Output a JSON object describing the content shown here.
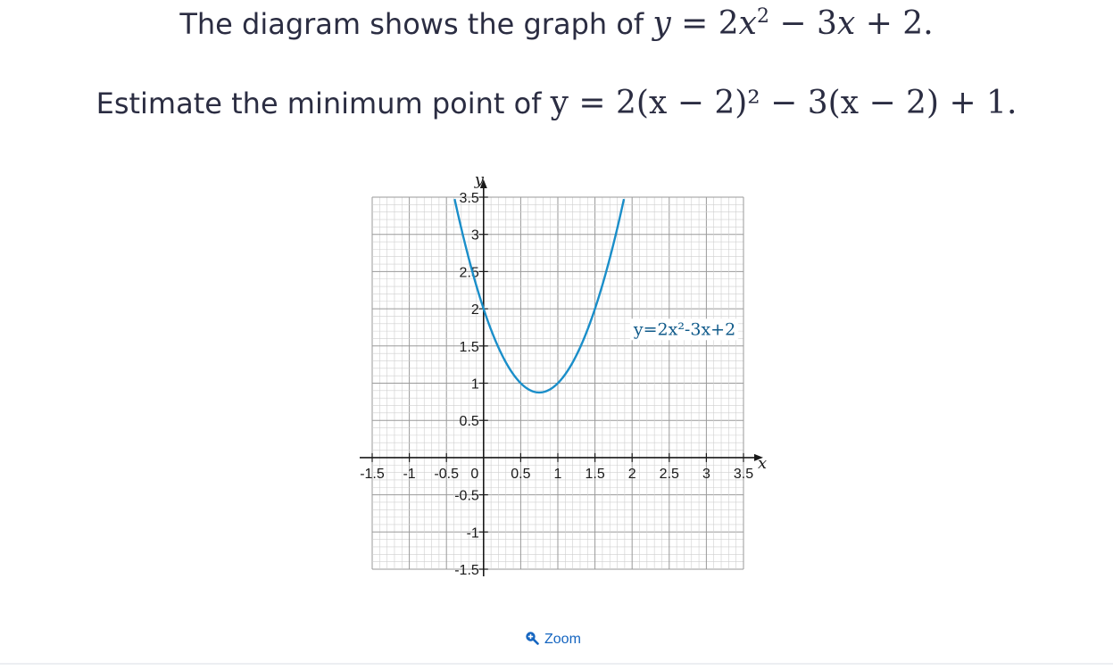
{
  "question": {
    "line1_prefix": "The diagram shows the graph of ",
    "line1_equation": {
      "lhs": "y",
      "eq": " = 2",
      "x_term": "x",
      "exp": "2",
      "rest": " − 3",
      "x2": "x",
      "tail": " + 2."
    },
    "line2_prefix": "Estimate the minimum point of ",
    "line2_equation": "y = 2(x − 2)² − 3(x − 2) + 1."
  },
  "zoom": {
    "label": "Zoom",
    "icon": "zoom-in-icon"
  },
  "colors": {
    "curve": "#1a8ec9",
    "grid_minor": "#cfcfcf",
    "grid_major": "#9a9a9a",
    "axis": "#1a1a1a",
    "link": "#1565c0",
    "text": "#2b2d42"
  },
  "chart_data": {
    "type": "line",
    "title": "",
    "xlabel": "x",
    "ylabel": "y",
    "xlim": [
      -1.5,
      3.5
    ],
    "ylim": [
      -1.5,
      3.5
    ],
    "grid": true,
    "x_ticks": [
      "-1.5",
      "-1",
      "-0.5",
      "0",
      "0.5",
      "1",
      "1.5",
      "2",
      "2.5",
      "3",
      "3.5"
    ],
    "y_ticks": [
      "3.5",
      "3",
      "2.5",
      "2",
      "1.5",
      "1",
      "0.5",
      "-0.5",
      "-1",
      "-1.5"
    ],
    "origin_label": "0",
    "series": [
      {
        "name": "y=2x²-3x+2",
        "function": "2x^2-3x+2",
        "x": [
          -0.39,
          -0.25,
          0,
          0.25,
          0.5,
          0.75,
          1,
          1.25,
          1.5,
          1.75,
          1.89
        ],
        "y": [
          3.47,
          2.88,
          2.0,
          1.38,
          1.0,
          0.88,
          1.0,
          1.38,
          2.0,
          2.88,
          3.47
        ]
      }
    ],
    "annotation": {
      "text": "y=2x²-3x+2"
    }
  }
}
